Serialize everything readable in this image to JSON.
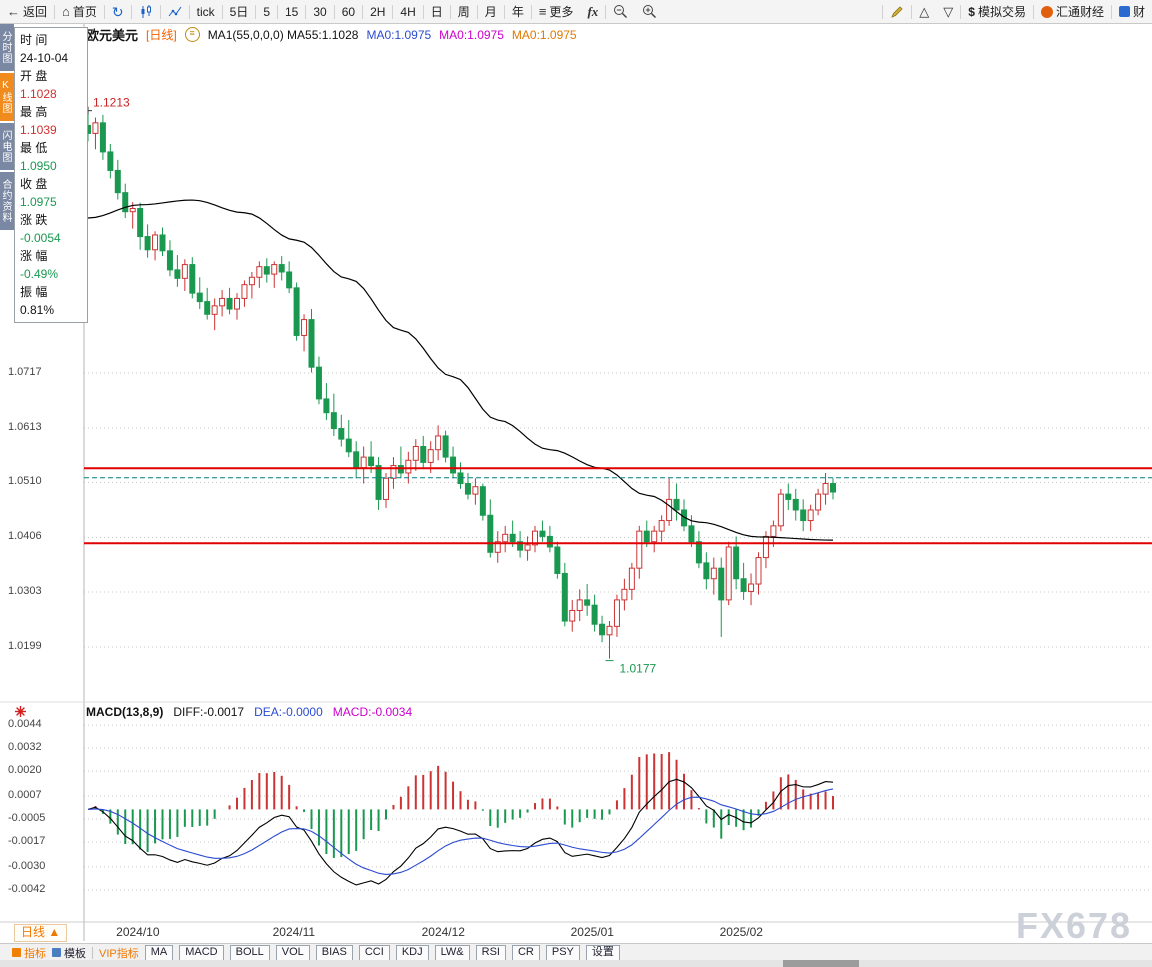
{
  "toolbar": {
    "back": "返回",
    "home": "首页",
    "periods": [
      "tick",
      "5日",
      "5",
      "15",
      "30",
      "60",
      "2H",
      "4H",
      "日",
      "周",
      "月",
      "年"
    ],
    "more": "更多",
    "sim_trade": "模拟交易",
    "brand": "汇通财经",
    "brand2": "财"
  },
  "side_tabs": [
    {
      "label": "分时图"
    },
    {
      "label": "K线图"
    },
    {
      "label": "闪电图"
    },
    {
      "label": "合约资料"
    }
  ],
  "quote_panel": {
    "rows": [
      {
        "label": "时 间",
        "value": "24-10-04",
        "color": "#111111"
      },
      {
        "label": "开 盘",
        "value": "1.1028",
        "color": "#d03030"
      },
      {
        "label": "最 高",
        "value": "1.1039",
        "color": "#d03030"
      },
      {
        "label": "最 低",
        "value": "1.0950",
        "color": "#1a9850"
      },
      {
        "label": "收 盘",
        "value": "1.0975",
        "color": "#1a9850"
      },
      {
        "label": "涨 跌",
        "value": "-0.0054",
        "color": "#1a9850"
      },
      {
        "label": "涨 幅",
        "value": "-0.49%",
        "color": "#1a9850"
      },
      {
        "label": "振 幅",
        "value": "0.81%",
        "color": "#111111"
      }
    ]
  },
  "chart_header": {
    "symbol": "欧元美元",
    "period_tag": "[日线]",
    "ma_label": "MA1(55,0,0,0) MA55:1.1028",
    "ma0_blue": "MA0:1.0975",
    "ma0_magenta": "MA0:1.0975",
    "ma0_orange": "MA0:1.0975"
  },
  "macd_header": {
    "title": "MACD(13,8,9)",
    "diff": "DIFF:-0.0017",
    "dea": "DEA:-0.0000",
    "macd": "MACD:-0.0034"
  },
  "bottom_left_tab": {
    "label": "日线",
    "arrow": "▲"
  },
  "bottom_toolbar": [
    "指标",
    "模板",
    "VIP指标",
    "MA",
    "MACD",
    "BOLL",
    "VOL",
    "BIAS",
    "CCI",
    "KDJ",
    "LW&",
    "RSI",
    "CR",
    "PSY",
    "设置"
  ],
  "watermark": "FX678",
  "colors": {
    "up_red": "#cc3333",
    "down_green": "#1a9850",
    "level_line_red": "#e00000",
    "dashed_teal": "#008080",
    "accent_orange": "#f08000",
    "link_blue": "#1a62c8",
    "magenta": "#cc00cc"
  },
  "chart_data": {
    "type": "candlestick+macd",
    "symbol": "欧元美元 (EUR/USD)",
    "period": "日线",
    "main_y_ticks": [
      1.0717,
      1.0613,
      1.051,
      1.0406,
      1.0303,
      1.0199
    ],
    "macd_y_ticks": [
      0.0044,
      0.0032,
      0.002,
      0.0007,
      -0.0005,
      -0.0017,
      -0.003,
      -0.0042
    ],
    "x_labels": [
      [
        "2024/10",
        7
      ],
      [
        "2024/11",
        28
      ],
      [
        "2024/12",
        48
      ],
      [
        "2025/01",
        68
      ],
      [
        "2025/02",
        88
      ]
    ],
    "red_lines": [
      1.0537,
      1.0395
    ],
    "dashed_line": 1.0519,
    "macd_params": [
      13,
      8,
      9
    ],
    "annotations": {
      "high": {
        "index": 0,
        "price": 1.1213,
        "label": "1.1213"
      },
      "low": {
        "index": 70,
        "price": 1.0177,
        "label": "1.0177"
      }
    },
    "ma55_points": [
      [
        0,
        1.101
      ],
      [
        7,
        1.1035
      ],
      [
        14,
        1.1044
      ],
      [
        21,
        1.102
      ],
      [
        28,
        1.0968
      ],
      [
        35,
        1.0895
      ],
      [
        42,
        1.0798
      ],
      [
        49,
        1.071
      ],
      [
        55,
        1.0628
      ],
      [
        62,
        1.0572
      ],
      [
        69,
        1.0537
      ],
      [
        75,
        1.0486
      ],
      [
        82,
        1.0435
      ],
      [
        90,
        1.0407
      ],
      [
        100,
        1.0401
      ]
    ],
    "colors": {
      "up": "#cc3333",
      "down": "#1a9850",
      "ma": "#000000",
      "diff": "#000000",
      "dea": "#2b4bd0",
      "level_line": "#e00000",
      "dashed": "#008080"
    },
    "candles": [
      [
        1.1185,
        1.1213,
        1.1155,
        1.117
      ],
      [
        1.117,
        1.12,
        1.114,
        1.119
      ],
      [
        1.119,
        1.1205,
        1.112,
        1.1135
      ],
      [
        1.1135,
        1.115,
        1.1085,
        1.11
      ],
      [
        1.11,
        1.112,
        1.1045,
        1.1058
      ],
      [
        1.1058,
        1.1075,
        1.101,
        1.1022
      ],
      [
        1.1022,
        1.104,
        1.099,
        1.1028
      ],
      [
        1.1028,
        1.1039,
        1.095,
        1.0975
      ],
      [
        1.0975,
        1.0998,
        1.0935,
        1.095
      ],
      [
        1.095,
        1.0985,
        1.093,
        1.0978
      ],
      [
        1.0978,
        1.0992,
        1.0938,
        1.0948
      ],
      [
        1.0948,
        1.0968,
        1.09,
        1.0912
      ],
      [
        1.0912,
        1.094,
        1.088,
        1.0896
      ],
      [
        1.0896,
        1.0932,
        1.0872,
        1.0922
      ],
      [
        1.0922,
        1.0936,
        1.0858,
        1.0868
      ],
      [
        1.0868,
        1.0898,
        1.0838,
        1.0852
      ],
      [
        1.0852,
        1.0878,
        1.0818,
        1.0828
      ],
      [
        1.0828,
        1.0858,
        1.0798,
        1.0844
      ],
      [
        1.0844,
        1.0874,
        1.0824,
        1.0858
      ],
      [
        1.0858,
        1.0878,
        1.0828,
        1.0838
      ],
      [
        1.0838,
        1.0868,
        1.0818,
        1.0858
      ],
      [
        1.0858,
        1.0892,
        1.0842,
        1.0884
      ],
      [
        1.0884,
        1.0908,
        1.0858,
        1.0898
      ],
      [
        1.0898,
        1.0928,
        1.0878,
        1.0918
      ],
      [
        1.0918,
        1.0934,
        1.0888,
        1.0904
      ],
      [
        1.0904,
        1.0928,
        1.0878,
        1.0922
      ],
      [
        1.0922,
        1.0938,
        1.0892,
        1.0908
      ],
      [
        1.0908,
        1.0928,
        1.0868,
        1.0878
      ],
      [
        1.0878,
        1.0888,
        1.0778,
        1.0788
      ],
      [
        1.0788,
        1.0828,
        1.0758,
        1.0818
      ],
      [
        1.0818,
        1.0838,
        1.0718,
        1.0728
      ],
      [
        1.0728,
        1.0748,
        1.0658,
        1.0668
      ],
      [
        1.0668,
        1.0698,
        1.0628,
        1.0642
      ],
      [
        1.0642,
        1.0678,
        1.0598,
        1.0612
      ],
      [
        1.0612,
        1.0638,
        1.0578,
        1.0592
      ],
      [
        1.0592,
        1.0628,
        1.0558,
        1.0568
      ],
      [
        1.0568,
        1.0588,
        1.0518,
        1.0538
      ],
      [
        1.0538,
        1.0578,
        1.0508,
        1.0558
      ],
      [
        1.0558,
        1.0588,
        1.0528,
        1.0542
      ],
      [
        1.0542,
        1.0558,
        1.0458,
        1.0478
      ],
      [
        1.0478,
        1.0528,
        1.0462,
        1.0518
      ],
      [
        1.0518,
        1.0558,
        1.0498,
        1.0542
      ],
      [
        1.0542,
        1.0578,
        1.0518,
        1.0528
      ],
      [
        1.0528,
        1.0568,
        1.0508,
        1.0552
      ],
      [
        1.0552,
        1.0592,
        1.0532,
        1.0578
      ],
      [
        1.0578,
        1.0598,
        1.0538,
        1.0548
      ],
      [
        1.0548,
        1.0588,
        1.0528,
        1.0572
      ],
      [
        1.0572,
        1.0618,
        1.0552,
        1.0598
      ],
      [
        1.0598,
        1.0608,
        1.0548,
        1.0558
      ],
      [
        1.0558,
        1.0578,
        1.0518,
        1.0528
      ],
      [
        1.0528,
        1.0548,
        1.0498,
        1.0508
      ],
      [
        1.0508,
        1.0528,
        1.0478,
        1.0488
      ],
      [
        1.0488,
        1.0518,
        1.0468,
        1.0502
      ],
      [
        1.0502,
        1.0508,
        1.0438,
        1.0448
      ],
      [
        1.0448,
        1.0478,
        1.0368,
        1.0378
      ],
      [
        1.0378,
        1.0418,
        1.0358,
        1.0398
      ],
      [
        1.0398,
        1.0428,
        1.0378,
        1.0412
      ],
      [
        1.0412,
        1.0438,
        1.0388,
        1.0398
      ],
      [
        1.0398,
        1.0418,
        1.0368,
        1.0382
      ],
      [
        1.0382,
        1.0408,
        1.0362,
        1.0392
      ],
      [
        1.0392,
        1.0428,
        1.0378,
        1.0418
      ],
      [
        1.0418,
        1.0438,
        1.0398,
        1.0408
      ],
      [
        1.0408,
        1.0428,
        1.0378,
        1.0388
      ],
      [
        1.0388,
        1.0398,
        1.0328,
        1.0338
      ],
      [
        1.0338,
        1.0358,
        1.0238,
        1.0248
      ],
      [
        1.0248,
        1.0288,
        1.0228,
        1.0268
      ],
      [
        1.0268,
        1.0308,
        1.0248,
        1.0288
      ],
      [
        1.0288,
        1.0318,
        1.0258,
        1.0278
      ],
      [
        1.0278,
        1.0298,
        1.0228,
        1.0242
      ],
      [
        1.0242,
        1.0258,
        1.0208,
        1.0222
      ],
      [
        1.0222,
        1.0248,
        1.0177,
        1.0238
      ],
      [
        1.0238,
        1.0298,
        1.0218,
        1.0288
      ],
      [
        1.0288,
        1.0328,
        1.0268,
        1.0308
      ],
      [
        1.0308,
        1.0358,
        1.0288,
        1.0348
      ],
      [
        1.0348,
        1.0428,
        1.0328,
        1.0418
      ],
      [
        1.0418,
        1.0438,
        1.0388,
        1.0398
      ],
      [
        1.0398,
        1.0428,
        1.0378,
        1.0418
      ],
      [
        1.0418,
        1.0448,
        1.0398,
        1.0438
      ],
      [
        1.0438,
        1.0518,
        1.0428,
        1.0478
      ],
      [
        1.0478,
        1.0508,
        1.0438,
        1.0458
      ],
      [
        1.0458,
        1.0478,
        1.0418,
        1.0428
      ],
      [
        1.0428,
        1.0448,
        1.0388,
        1.0398
      ],
      [
        1.0398,
        1.0418,
        1.0348,
        1.0358
      ],
      [
        1.0358,
        1.0378,
        1.0308,
        1.0328
      ],
      [
        1.0328,
        1.0368,
        1.0298,
        1.0348
      ],
      [
        1.0348,
        1.0368,
        1.0218,
        1.0288
      ],
      [
        1.0288,
        1.0398,
        1.0278,
        1.0388
      ],
      [
        1.0388,
        1.0408,
        1.0308,
        1.0328
      ],
      [
        1.0328,
        1.0358,
        1.0288,
        1.0304
      ],
      [
        1.0304,
        1.0338,
        1.0278,
        1.0318
      ],
      [
        1.0318,
        1.0378,
        1.0298,
        1.0368
      ],
      [
        1.0368,
        1.0418,
        1.0348,
        1.0408
      ],
      [
        1.0408,
        1.0438,
        1.0388,
        1.0428
      ],
      [
        1.0428,
        1.0498,
        1.0418,
        1.0488
      ],
      [
        1.0488,
        1.0508,
        1.0458,
        1.0478
      ],
      [
        1.0478,
        1.0498,
        1.0438,
        1.0458
      ],
      [
        1.0458,
        1.0478,
        1.0418,
        1.0438
      ],
      [
        1.0438,
        1.0468,
        1.0418,
        1.0458
      ],
      [
        1.0458,
        1.0498,
        1.0448,
        1.0488
      ],
      [
        1.0488,
        1.0528,
        1.0468,
        1.0508
      ],
      [
        1.0508,
        1.0518,
        1.0478,
        1.0492
      ]
    ]
  }
}
